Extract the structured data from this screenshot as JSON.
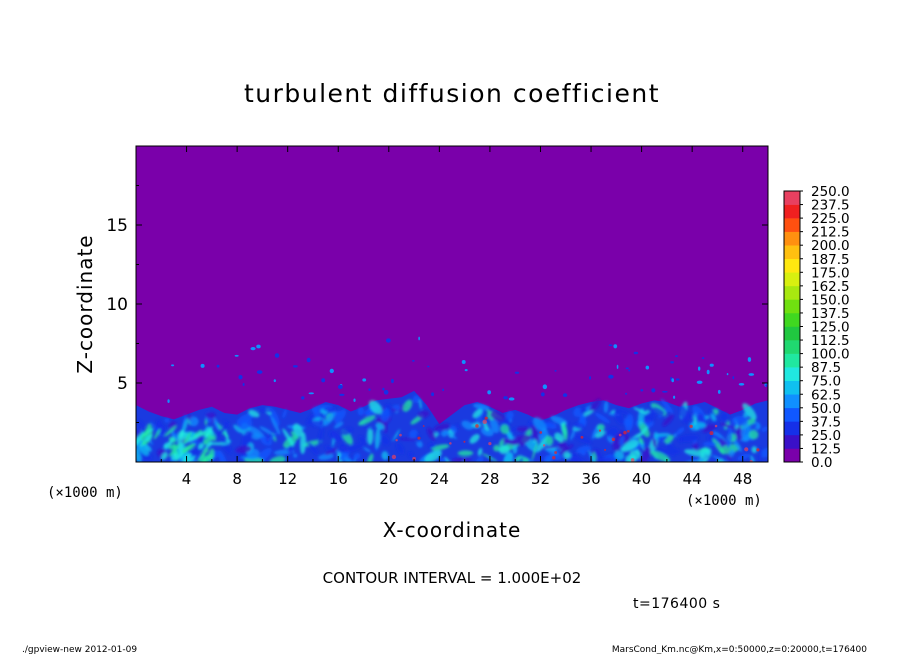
{
  "chart_data": {
    "type": "heatmap",
    "title": "turbulent diffusion coefficient",
    "xlabel": "X-coordinate",
    "ylabel": "Z-coordinate",
    "x_unit": "(×1000 m)",
    "y_unit": "(×1000 m)",
    "xlim": [
      0,
      50
    ],
    "ylim": [
      0,
      20
    ],
    "x_ticks": [
      "4",
      "8",
      "12",
      "16",
      "20",
      "24",
      "28",
      "32",
      "36",
      "40",
      "44",
      "48"
    ],
    "y_ticks": [
      "5",
      "10",
      "15"
    ],
    "background_color": "#7a00aa",
    "colorbar": {
      "levels": [
        "0.0",
        "12.5",
        "25.0",
        "37.5",
        "50.0",
        "62.5",
        "75.0",
        "87.5",
        "100.0",
        "112.5",
        "125.0",
        "137.5",
        "150.0",
        "162.5",
        "175.0",
        "187.5",
        "200.0",
        "212.5",
        "225.0",
        "237.5",
        "250.0"
      ],
      "colors": [
        "#7a00aa",
        "#3a10c8",
        "#1530e8",
        "#1058ff",
        "#1090ff",
        "#10c0f0",
        "#20e8e0",
        "#20e8a0",
        "#20d870",
        "#20c840",
        "#40d820",
        "#70e010",
        "#a8e810",
        "#d8f010",
        "#ffe810",
        "#ffc010",
        "#ff9010",
        "#ff5010",
        "#f02020",
        "#e84060",
        "#f090a0"
      ]
    },
    "terrain_top_km": [
      3.6,
      3.2,
      2.9,
      2.7,
      3.0,
      3.3,
      3.5,
      3.1,
      3.0,
      3.4,
      3.6,
      3.5,
      3.3,
      3.1,
      3.4,
      3.8,
      3.6,
      3.2,
      3.5,
      3.9,
      4.0,
      4.1,
      4.5,
      3.6,
      2.4,
      3.0,
      3.6,
      3.8,
      3.5,
      3.1,
      3.3,
      3.0,
      2.6,
      2.9,
      3.3,
      3.6,
      3.8,
      3.9,
      3.6,
      3.4,
      3.7,
      3.9,
      3.8,
      3.5,
      3.6,
      3.8,
      3.4,
      3.0,
      3.3,
      3.7,
      3.9
    ],
    "contour_interval_label": "CONTOUR INTERVAL = 1.000E+02",
    "time_label": "t=176400 s"
  },
  "footer": {
    "left": "./gpview-new   2012-01-09",
    "right": "MarsCond_Km.nc@Km,x=0:50000,z=0:20000,t=176400"
  }
}
